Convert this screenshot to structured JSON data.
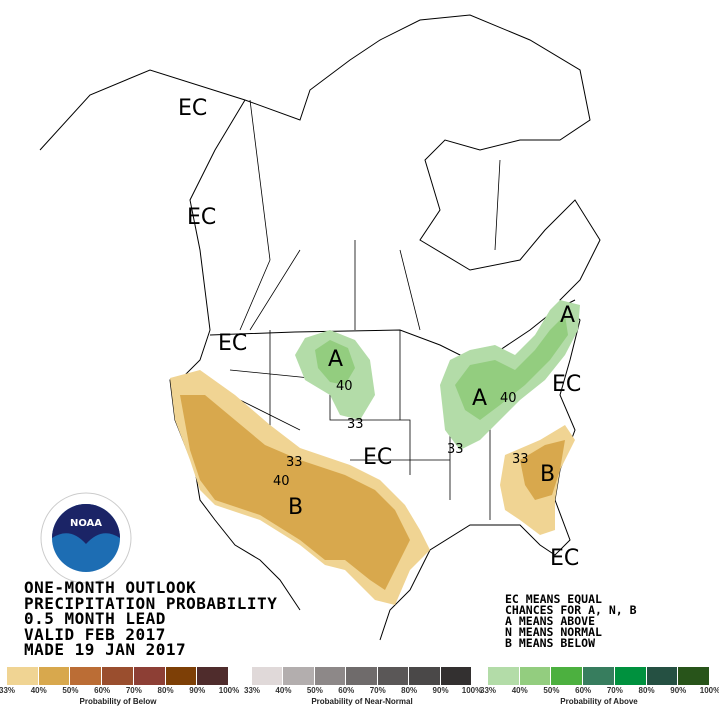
{
  "title_lines": [
    "ONE-MONTH OUTLOOK",
    "PRECIPITATION PROBABILITY",
    "0.5 MONTH LEAD",
    "VALID FEB 2017",
    "MADE 19 JAN 2017"
  ],
  "key_lines": [
    "EC MEANS EQUAL",
    "CHANCES FOR A, N, B",
    "A MEANS ABOVE",
    "N MEANS NORMAL",
    "B MEANS BELOW"
  ],
  "logo_text": "NOAA",
  "map_labels": {
    "ec": [
      "EC",
      "EC",
      "EC",
      "EC",
      "EC",
      "EC"
    ],
    "above": [
      "A",
      "A",
      "A"
    ],
    "below": [
      "B",
      "B"
    ],
    "contours": [
      "40",
      "33",
      "33",
      "40",
      "33",
      "40",
      "33"
    ]
  },
  "legends": [
    {
      "title": "Probability of Below",
      "ticks": [
        "33%",
        "40%",
        "50%",
        "60%",
        "70%",
        "80%",
        "90%",
        "100%"
      ],
      "colors": [
        "#f0d493",
        "#d8a84d",
        "#bb6d35",
        "#9a4e2e",
        "#8d3f35",
        "#7d3f06",
        "#4f2c2c"
      ]
    },
    {
      "title": "Probability of Near-Normal",
      "ticks": [
        "33%",
        "40%",
        "50%",
        "60%",
        "70%",
        "80%",
        "90%",
        "100%"
      ],
      "colors": [
        "#e0d9d9",
        "#b3aeae",
        "#8d8888",
        "#6f6b6b",
        "#5a5757",
        "#4a4848",
        "#333030"
      ]
    },
    {
      "title": "Probability of Above",
      "ticks": [
        "33%",
        "40%",
        "50%",
        "60%",
        "70%",
        "80%",
        "90%",
        "100%"
      ],
      "colors": [
        "#b3dca8",
        "#93cd7f",
        "#4cb03f",
        "#377d5e",
        "#00913e",
        "#255042",
        "#28541a"
      ]
    }
  ]
}
